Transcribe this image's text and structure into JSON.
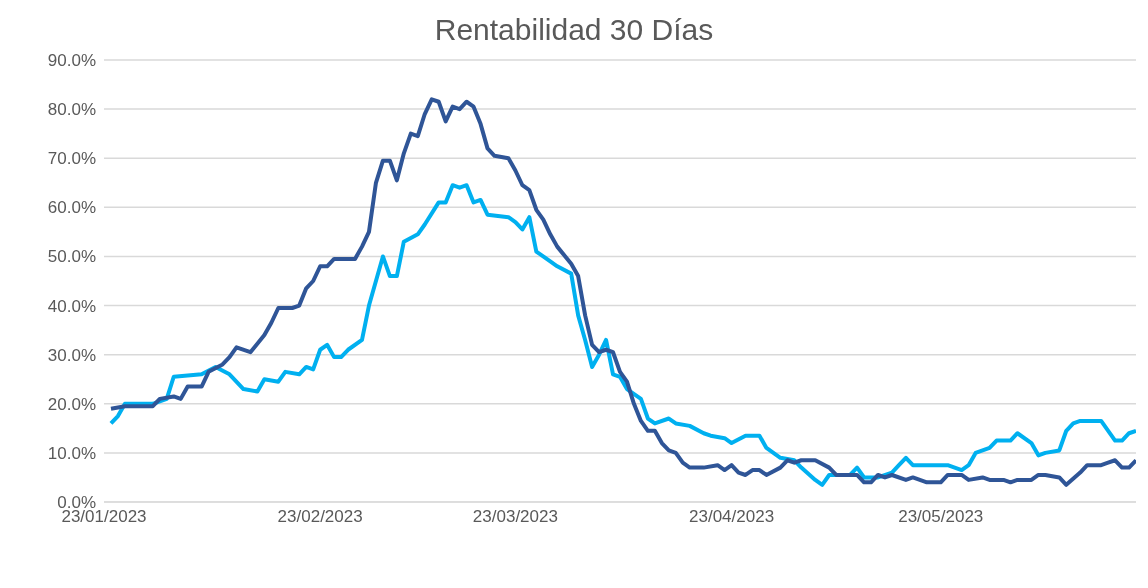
{
  "chart_data": {
    "type": "line",
    "title": "Rentabilidad 30 Días",
    "xlim": [
      "2023-01-23",
      "2023-06-20"
    ],
    "xticks": [
      {
        "value": "2023-01-23",
        "label": "23/01/2023"
      },
      {
        "value": "2023-02-23",
        "label": "23/02/2023"
      },
      {
        "value": "2023-03-23",
        "label": "23/03/2023"
      },
      {
        "value": "2023-04-23",
        "label": "23/04/2023"
      },
      {
        "value": "2023-05-23",
        "label": "23/05/2023"
      }
    ],
    "ylim": [
      0,
      90
    ],
    "yticks": [
      {
        "value": 0,
        "label": "0.0%"
      },
      {
        "value": 10,
        "label": "10.0%"
      },
      {
        "value": 20,
        "label": "20.0%"
      },
      {
        "value": 30,
        "label": "30.0%"
      },
      {
        "value": 40,
        "label": "40.0%"
      },
      {
        "value": 50,
        "label": "50.0%"
      },
      {
        "value": 60,
        "label": "60.0%"
      },
      {
        "value": 70,
        "label": "70.0%"
      },
      {
        "value": 80,
        "label": "80.0%"
      },
      {
        "value": 90,
        "label": "90.0%"
      }
    ],
    "grid": "y",
    "series": [
      {
        "color": "#00b0f0",
        "x": [
          "2023-01-24",
          "2023-01-25",
          "2023-01-26",
          "2023-01-28",
          "2023-01-30",
          "2023-02-01",
          "2023-02-02",
          "2023-02-06",
          "2023-02-08",
          "2023-02-10",
          "2023-02-12",
          "2023-02-14",
          "2023-02-15",
          "2023-02-17",
          "2023-02-18",
          "2023-02-20",
          "2023-02-21",
          "2023-02-22",
          "2023-02-23",
          "2023-02-24",
          "2023-02-25",
          "2023-02-26",
          "2023-02-27",
          "2023-03-01",
          "2023-03-02",
          "2023-03-04",
          "2023-03-05",
          "2023-03-06",
          "2023-03-07",
          "2023-03-09",
          "2023-03-10",
          "2023-03-12",
          "2023-03-13",
          "2023-03-14",
          "2023-03-15",
          "2023-03-16",
          "2023-03-17",
          "2023-03-18",
          "2023-03-19",
          "2023-03-22",
          "2023-03-23",
          "2023-03-24",
          "2023-03-25",
          "2023-03-26",
          "2023-03-28",
          "2023-03-29",
          "2023-03-31",
          "2023-04-01",
          "2023-04-02",
          "2023-04-03",
          "2023-04-04",
          "2023-04-05",
          "2023-04-06",
          "2023-04-07",
          "2023-04-08",
          "2023-04-10",
          "2023-04-11",
          "2023-04-12",
          "2023-04-14",
          "2023-04-15",
          "2023-04-17",
          "2023-04-19",
          "2023-04-20",
          "2023-04-22",
          "2023-04-23",
          "2023-04-25",
          "2023-04-27",
          "2023-04-28",
          "2023-04-30",
          "2023-05-02",
          "2023-05-03",
          "2023-05-05",
          "2023-05-06",
          "2023-05-07",
          "2023-05-08",
          "2023-05-10",
          "2023-05-11",
          "2023-05-12",
          "2023-05-14",
          "2023-05-16",
          "2023-05-17",
          "2023-05-18",
          "2023-05-19",
          "2023-05-23",
          "2023-05-24",
          "2023-05-26",
          "2023-05-27",
          "2023-05-28",
          "2023-05-30",
          "2023-05-31",
          "2023-06-02",
          "2023-06-03",
          "2023-06-05",
          "2023-06-06",
          "2023-06-07",
          "2023-06-09",
          "2023-06-10",
          "2023-06-11",
          "2023-06-12",
          "2023-06-14",
          "2023-06-15",
          "2023-06-17",
          "2023-06-18",
          "2023-06-19",
          "2023-06-20"
        ],
        "values": [
          16,
          17.5,
          20,
          20,
          20,
          21,
          25.5,
          26,
          27.5,
          26,
          23,
          22.5,
          25,
          24.5,
          26.5,
          26,
          27.5,
          27,
          31,
          32,
          29.5,
          29.5,
          31,
          33,
          40,
          50,
          46,
          46,
          53,
          54.5,
          56.5,
          61,
          61,
          64.5,
          64,
          64.5,
          61,
          61.5,
          58.5,
          58,
          57,
          55.5,
          58,
          51,
          49,
          48,
          46.5,
          38,
          33,
          27.5,
          30,
          33,
          26,
          25.5,
          23,
          21,
          17,
          16,
          17,
          16,
          15.5,
          14,
          13.5,
          13,
          12,
          13.5,
          13.5,
          11,
          9,
          8.5,
          7,
          4.5,
          3.5,
          5.5,
          5.5,
          5.5,
          7,
          5,
          5,
          6,
          7.5,
          9,
          7.5,
          7.5,
          7.5,
          6.5,
          7.5,
          10,
          11,
          12.5,
          12.5,
          14,
          12,
          9.5,
          10,
          10.5,
          14.5,
          16,
          16.5,
          16.5,
          16.5,
          12.5,
          12.5,
          14,
          14.5
        ]
      },
      {
        "color": "#2f5597",
        "x": [
          "2023-01-24",
          "2023-01-26",
          "2023-01-27",
          "2023-01-28",
          "2023-01-30",
          "2023-01-31",
          "2023-02-02",
          "2023-02-03",
          "2023-02-04",
          "2023-02-06",
          "2023-02-07",
          "2023-02-09",
          "2023-02-10",
          "2023-02-11",
          "2023-02-13",
          "2023-02-15",
          "2023-02-16",
          "2023-02-17",
          "2023-02-19",
          "2023-02-20",
          "2023-02-21",
          "2023-02-22",
          "2023-02-23",
          "2023-02-24",
          "2023-02-25",
          "2023-02-27",
          "2023-02-28",
          "2023-03-01",
          "2023-03-02",
          "2023-03-03",
          "2023-03-04",
          "2023-03-05",
          "2023-03-06",
          "2023-03-07",
          "2023-03-08",
          "2023-03-09",
          "2023-03-10",
          "2023-03-11",
          "2023-03-12",
          "2023-03-13",
          "2023-03-14",
          "2023-03-15",
          "2023-03-16",
          "2023-03-17",
          "2023-03-18",
          "2023-03-19",
          "2023-03-20",
          "2023-03-22",
          "2023-03-23",
          "2023-03-24",
          "2023-03-25",
          "2023-03-26",
          "2023-03-27",
          "2023-03-28",
          "2023-03-29",
          "2023-03-31",
          "2023-04-01",
          "2023-04-02",
          "2023-04-03",
          "2023-04-04",
          "2023-04-05",
          "2023-04-06",
          "2023-04-07",
          "2023-04-08",
          "2023-04-09",
          "2023-04-10",
          "2023-04-11",
          "2023-04-12",
          "2023-04-13",
          "2023-04-14",
          "2023-04-15",
          "2023-04-16",
          "2023-04-17",
          "2023-04-19",
          "2023-04-21",
          "2023-04-22",
          "2023-04-23",
          "2023-04-24",
          "2023-04-25",
          "2023-04-26",
          "2023-04-27",
          "2023-04-28",
          "2023-04-30",
          "2023-05-01",
          "2023-05-02",
          "2023-05-03",
          "2023-05-05",
          "2023-05-07",
          "2023-05-08",
          "2023-05-10",
          "2023-05-11",
          "2023-05-12",
          "2023-05-13",
          "2023-05-14",
          "2023-05-15",
          "2023-05-16",
          "2023-05-18",
          "2023-05-19",
          "2023-05-21",
          "2023-05-22",
          "2023-05-23",
          "2023-05-24",
          "2023-05-26",
          "2023-05-27",
          "2023-05-29",
          "2023-05-30",
          "2023-06-01",
          "2023-06-02",
          "2023-06-03",
          "2023-06-05",
          "2023-06-06",
          "2023-06-07",
          "2023-06-09",
          "2023-06-10",
          "2023-06-12",
          "2023-06-13",
          "2023-06-15",
          "2023-06-16",
          "2023-06-17",
          "2023-06-18",
          "2023-06-19",
          "2023-06-20"
        ],
        "values": [
          19,
          19.5,
          19.5,
          19.5,
          19.5,
          21,
          21.5,
          21,
          23.5,
          23.5,
          26.5,
          28,
          29.5,
          31.5,
          30.5,
          34,
          36.5,
          39.5,
          39.5,
          40,
          43.5,
          45,
          48,
          48,
          49.5,
          49.5,
          49.5,
          52,
          55,
          65,
          69.5,
          69.5,
          65.5,
          71,
          75,
          74.5,
          79,
          82,
          81.5,
          77.5,
          80.5,
          80,
          81.5,
          80.5,
          77,
          72,
          70.5,
          70,
          67.5,
          64.5,
          63.5,
          59.5,
          57.5,
          54.5,
          52,
          48.5,
          46,
          38,
          32,
          30.5,
          31,
          30.5,
          26.5,
          24.5,
          20,
          16.5,
          14.5,
          14.5,
          12,
          10.5,
          10,
          8,
          7,
          7,
          7.5,
          6.5,
          7.5,
          6,
          5.5,
          6.5,
          6.5,
          5.5,
          7,
          8.5,
          8,
          8.5,
          8.5,
          7,
          5.5,
          5.5,
          5.5,
          4,
          4,
          5.5,
          5,
          5.5,
          4.5,
          5,
          4,
          4,
          4,
          5.5,
          5.5,
          4.5,
          5,
          4.5,
          4.5,
          4,
          4.5,
          4.5,
          5.5,
          5.5,
          5,
          3.5,
          6,
          7.5,
          7.5,
          8,
          8.5,
          7,
          7,
          8.5
        ]
      }
    ]
  }
}
